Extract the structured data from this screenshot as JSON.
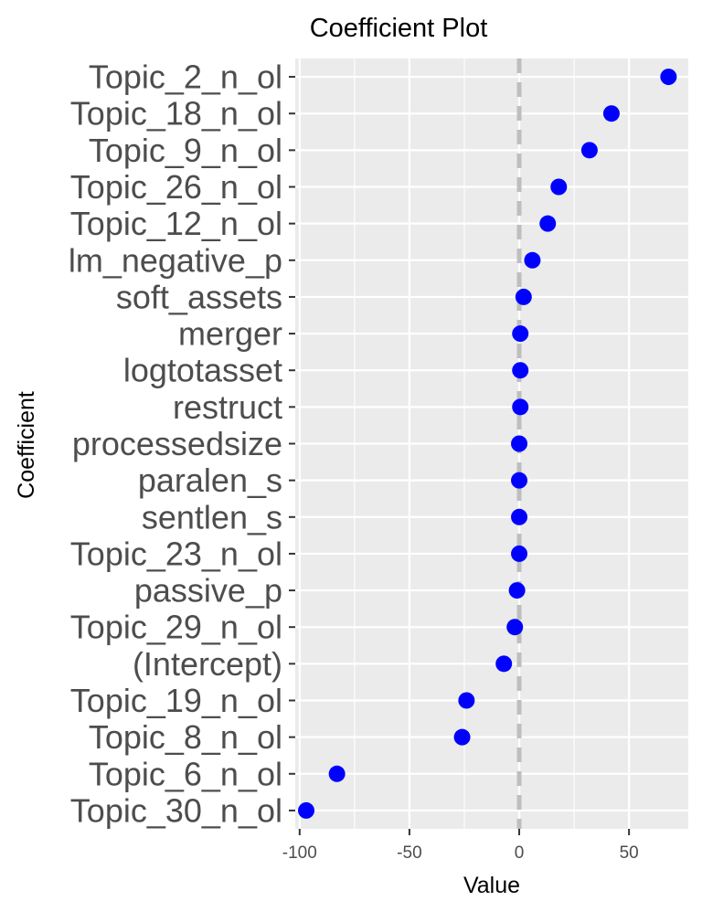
{
  "chart_data": {
    "type": "scatter",
    "title": "Coefficient Plot",
    "xlabel": "Value",
    "ylabel": "Coefficient",
    "xlim": [
      -102,
      77
    ],
    "xticks": [
      -100,
      -50,
      0,
      50
    ],
    "reference_line": {
      "x": 0,
      "style": "dashed"
    },
    "point_color": "#0000ff",
    "panel_color": "#ebebeb",
    "grid": true,
    "categories": [
      "Topic_2_n_ol",
      "Topic_18_n_ol",
      "Topic_9_n_ol",
      "Topic_26_n_ol",
      "Topic_12_n_ol",
      "lm_negative_p",
      "soft_assets",
      "merger",
      "logtotasset",
      "restruct",
      "processedsize",
      "paralen_s",
      "sentlen_s",
      "Topic_23_n_ol",
      "passive_p",
      "Topic_29_n_ol",
      "(Intercept)",
      "Topic_19_n_ol",
      "Topic_8_n_ol",
      "Topic_6_n_ol",
      "Topic_30_n_ol"
    ],
    "values": [
      68,
      42,
      32,
      18,
      13,
      6,
      2,
      0.5,
      0.5,
      0.5,
      0,
      0,
      0,
      0,
      -1,
      -2,
      -7,
      -24,
      -26,
      -83,
      -97
    ]
  }
}
